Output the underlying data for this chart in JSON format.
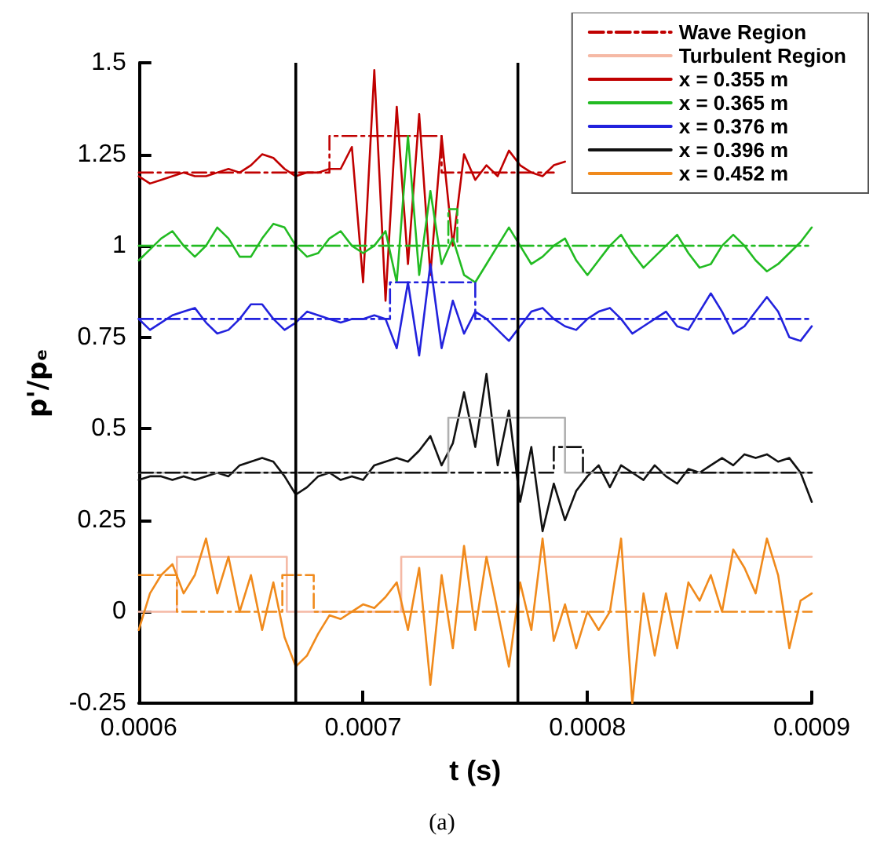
{
  "chart_data": {
    "type": "line",
    "xlabel": "t (s)",
    "ylabel": "p'/pₑ",
    "annotations": [
      "(a)"
    ],
    "x": [
      0.0006,
      0.000605,
      0.00061,
      0.000615,
      0.00062,
      0.000625,
      0.00063,
      0.000635,
      0.00064,
      0.000645,
      0.00065,
      0.000655,
      0.00066,
      0.000665,
      0.00067,
      0.000675,
      0.00068,
      0.000685,
      0.00069,
      0.000695,
      0.0007,
      0.000705,
      0.00071,
      0.000715,
      0.00072,
      0.000725,
      0.00073,
      0.000735,
      0.00074,
      0.000745,
      0.00075,
      0.000755,
      0.00076,
      0.000765,
      0.00077,
      0.000775,
      0.00078,
      0.000785,
      0.00079,
      0.000795,
      0.0008,
      0.000805,
      0.00081,
      0.000815,
      0.00082,
      0.000825,
      0.00083,
      0.000835,
      0.00084,
      0.000845,
      0.00085,
      0.000855,
      0.00086,
      0.000865,
      0.00087,
      0.000875,
      0.00088,
      0.000885,
      0.00089,
      0.000895,
      0.0009
    ],
    "series": [
      {
        "name": "Wave Region",
        "type": "step",
        "line_style": "dashed",
        "color": "#c00000",
        "x": [
          0.0006,
          0.000685,
          0.000735,
          0.000785
        ],
        "values": [
          1.2,
          1.3,
          1.2,
          1.2
        ]
      },
      {
        "name": "Turbulent Region",
        "type": "step",
        "line_style": "solid",
        "color": "#f5b9a5",
        "x": [
          0.0006,
          0.000617,
          0.000666,
          0.000717,
          0.0009
        ],
        "values": [
          0,
          0.15,
          0,
          0.15,
          0.15
        ]
      },
      {
        "name": "x = 0.355 m",
        "color": "#c00000",
        "values": [
          1.19,
          1.17,
          1.18,
          1.19,
          1.2,
          1.19,
          1.19,
          1.2,
          1.21,
          1.2,
          1.22,
          1.25,
          1.24,
          1.21,
          1.19,
          1.2,
          1.2,
          1.21,
          1.21,
          1.27,
          0.9,
          1.48,
          0.85,
          1.38,
          0.95,
          1.36,
          0.92,
          1.3,
          1.0,
          1.25,
          1.18,
          1.22,
          1.19,
          1.26,
          1.22,
          1.2,
          1.19,
          1.22,
          1.23,
          null,
          null,
          null,
          null,
          null,
          null,
          null,
          null,
          null,
          null,
          null,
          null,
          null,
          null,
          null,
          null,
          null,
          null,
          null,
          null,
          null,
          null
        ]
      },
      {
        "name": "x = 0.365 m",
        "color": "#22bb22",
        "values": [
          0.96,
          0.99,
          1.02,
          1.04,
          1.0,
          0.97,
          1.0,
          1.05,
          1.02,
          0.97,
          0.97,
          1.02,
          1.06,
          1.05,
          1.0,
          0.97,
          0.98,
          1.02,
          1.04,
          1.0,
          0.98,
          1.0,
          1.04,
          0.9,
          1.3,
          0.92,
          1.15,
          0.95,
          1.02,
          0.92,
          0.9,
          0.95,
          1.0,
          1.05,
          1.0,
          0.95,
          0.97,
          1.0,
          1.02,
          0.96,
          0.92,
          0.96,
          1.0,
          1.03,
          0.98,
          0.94,
          0.97,
          1.0,
          1.03,
          0.98,
          0.94,
          0.95,
          1.0,
          1.03,
          1.0,
          0.96,
          0.93,
          0.95,
          0.98,
          1.01,
          1.05
        ]
      },
      {
        "name": "x = 0.376 m",
        "color": "#2222dd",
        "values": [
          0.8,
          0.77,
          0.79,
          0.81,
          0.82,
          0.83,
          0.79,
          0.76,
          0.77,
          0.8,
          0.84,
          0.84,
          0.8,
          0.77,
          0.79,
          0.82,
          0.81,
          0.8,
          0.79,
          0.8,
          0.8,
          0.81,
          0.8,
          0.72,
          0.9,
          0.7,
          0.95,
          0.72,
          0.85,
          0.76,
          0.82,
          0.8,
          0.77,
          0.74,
          0.78,
          0.82,
          0.83,
          0.8,
          0.78,
          0.77,
          0.8,
          0.82,
          0.83,
          0.8,
          0.76,
          0.78,
          0.8,
          0.82,
          0.78,
          0.77,
          0.82,
          0.87,
          0.82,
          0.76,
          0.78,
          0.82,
          0.86,
          0.82,
          0.75,
          0.74,
          0.78
        ]
      },
      {
        "name": "x = 0.396 m",
        "color": "#111111",
        "values": [
          0.36,
          0.37,
          0.37,
          0.36,
          0.37,
          0.36,
          0.37,
          0.38,
          0.37,
          0.4,
          0.41,
          0.42,
          0.41,
          0.37,
          0.32,
          0.34,
          0.37,
          0.38,
          0.36,
          0.37,
          0.36,
          0.4,
          0.41,
          0.42,
          0.41,
          0.44,
          0.48,
          0.4,
          0.46,
          0.6,
          0.45,
          0.65,
          0.4,
          0.55,
          0.3,
          0.45,
          0.22,
          0.35,
          0.25,
          0.33,
          0.37,
          0.4,
          0.34,
          0.4,
          0.38,
          0.36,
          0.4,
          0.37,
          0.35,
          0.39,
          0.38,
          0.4,
          0.42,
          0.4,
          0.43,
          0.42,
          0.43,
          0.41,
          0.42,
          0.38,
          0.3
        ]
      },
      {
        "name": "x = 0.452 m",
        "color": "#f08a1c",
        "values": [
          -0.05,
          0.05,
          0.1,
          0.13,
          0.05,
          0.1,
          0.2,
          0.05,
          0.15,
          0.0,
          0.1,
          -0.05,
          0.08,
          -0.07,
          -0.15,
          -0.12,
          -0.06,
          -0.01,
          -0.02,
          0.0,
          0.02,
          0.01,
          0.04,
          0.08,
          -0.05,
          0.12,
          -0.2,
          0.1,
          -0.1,
          0.18,
          -0.05,
          0.15,
          0.0,
          -0.15,
          0.08,
          -0.05,
          0.2,
          -0.08,
          0.02,
          -0.1,
          0.0,
          -0.05,
          0.0,
          0.2,
          -0.25,
          0.05,
          -0.12,
          0.05,
          -0.1,
          0.08,
          0.03,
          0.1,
          0.0,
          0.17,
          0.12,
          0.05,
          0.2,
          0.1,
          -0.1,
          0.03,
          0.05
        ]
      },
      {
        "type": "step",
        "line_style": "dashed",
        "color": "#22bb22",
        "x": [
          0.0006,
          0.000738,
          0.000742,
          0.0009
        ],
        "values": [
          1.0,
          1.1,
          1.0,
          1.0
        ]
      },
      {
        "type": "step",
        "line_style": "dashed",
        "color": "#2222dd",
        "x": [
          0.0006,
          0.000712,
          0.00075,
          0.0009
        ],
        "values": [
          0.8,
          0.9,
          0.8,
          0.8
        ]
      },
      {
        "type": "step",
        "line_style": "solid",
        "color": "#b0b0b0",
        "x": [
          0.0006,
          0.000738,
          0.00079,
          0.0009
        ],
        "values": [
          0.38,
          0.53,
          0.38,
          0.38
        ]
      },
      {
        "type": "step",
        "line_style": "dashed",
        "color": "#111111",
        "x": [
          0.0006,
          0.000785,
          0.000798,
          0.0009
        ],
        "values": [
          0.38,
          0.45,
          0.38,
          0.38
        ]
      },
      {
        "type": "step",
        "line_style": "dashed",
        "color": "#f08a1c",
        "x": [
          0.0006,
          0.000617,
          0.000664,
          0.000678,
          0.0009
        ],
        "values": [
          0.1,
          0,
          0.1,
          0,
          0
        ]
      }
    ],
    "xlim": [
      0.0006,
      0.0009
    ],
    "xticks": [
      0.0006,
      0.0007,
      0.0008,
      0.0009
    ],
    "ylim": [
      -0.25,
      1.5
    ],
    "yticks": [
      -0.25,
      0,
      0.25,
      0.5,
      0.75,
      1,
      1.25,
      1.5
    ],
    "ref_lines": [
      {
        "axis": "x",
        "value": 0.00067,
        "color": "#000000"
      },
      {
        "axis": "x",
        "value": 0.000769,
        "color": "#000000"
      }
    ],
    "grid": false,
    "legend": "top right",
    "marker": "none",
    "line_style": "solid"
  }
}
